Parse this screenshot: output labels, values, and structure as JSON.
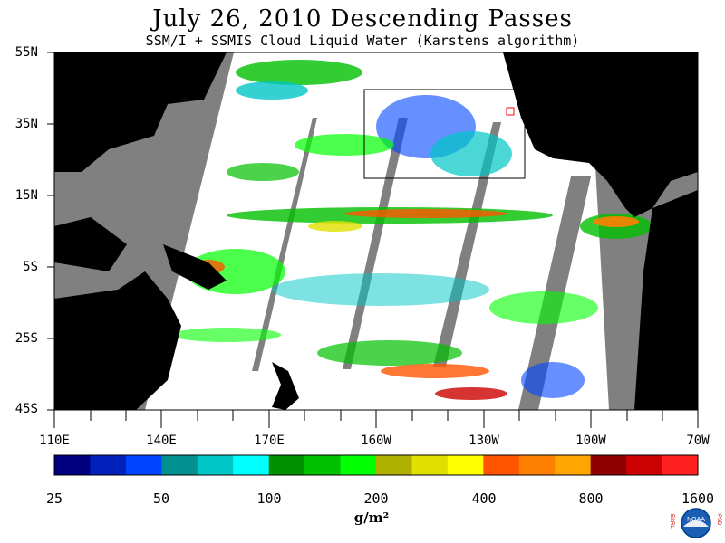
{
  "title": "July 26, 2010  Descending Passes",
  "subtitle": "SSM/I + SSMIS Cloud Liquid Water (Karstens algorithm)",
  "lat_labels": [
    "55N",
    "35N",
    "15N",
    "5S",
    "25S",
    "45S"
  ],
  "lon_labels": [
    "110E",
    "140E",
    "170E",
    "160W",
    "130W",
    "100W",
    "70W"
  ],
  "colorbar": {
    "labels": [
      "25",
      "50",
      "100",
      "200",
      "400",
      "800",
      "1600"
    ],
    "units": "g/m²",
    "colors": [
      "#00007f",
      "#0022bb",
      "#0044ff",
      "#009090",
      "#00c6c6",
      "#00ffff",
      "#009000",
      "#00c000",
      "#00ff00",
      "#b0b000",
      "#e0e000",
      "#ffff00",
      "#ff5500",
      "#ff8000",
      "#ffa500",
      "#900000",
      "#cc0000",
      "#ff2020"
    ]
  },
  "colors": {
    "land": "#000000",
    "no_data": "#808080",
    "ocean_clear": "#ffffff"
  },
  "logo_text": {
    "left": "ESRL",
    "right": "PSD",
    "center": "NOAA"
  }
}
